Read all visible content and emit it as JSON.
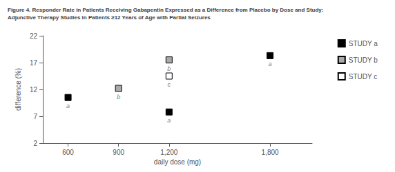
{
  "chart_data": {
    "type": "scatter",
    "title": "Figure 4. Responder Rate in Patients Receiving Gabapentin Expressed as a Difference from Placebo by Dose and Study:\nAdjunctive Therapy Studies in Patients ≥12 Years of Age with Partial Seizures",
    "xlabel": "daily dose (mg)",
    "ylabel": "difference (%)",
    "xlim": [
      450,
      2050
    ],
    "ylim": [
      2,
      22
    ],
    "xticks": [
      600,
      900,
      1200,
      1800
    ],
    "yticks": [
      2,
      7,
      12,
      17,
      22
    ],
    "grid": false,
    "legend": "right",
    "series": [
      {
        "name": "STUDY a",
        "color": "#000000",
        "marker": "square",
        "x": [
          600,
          1200,
          1800
        ],
        "values": [
          10.5,
          7.8,
          18.3
        ],
        "labels": [
          "a",
          "a",
          "a"
        ]
      },
      {
        "name": "STUDY b",
        "color": "#aaaaaa",
        "marker": "square",
        "x": [
          900,
          1200
        ],
        "values": [
          12.2,
          17.5
        ],
        "labels": [
          "b",
          "b"
        ]
      },
      {
        "name": "STUDY c",
        "color": "#ffffff",
        "marker": "square",
        "x": [
          1200
        ],
        "values": [
          14.5
        ],
        "labels": [
          "c"
        ]
      }
    ]
  }
}
